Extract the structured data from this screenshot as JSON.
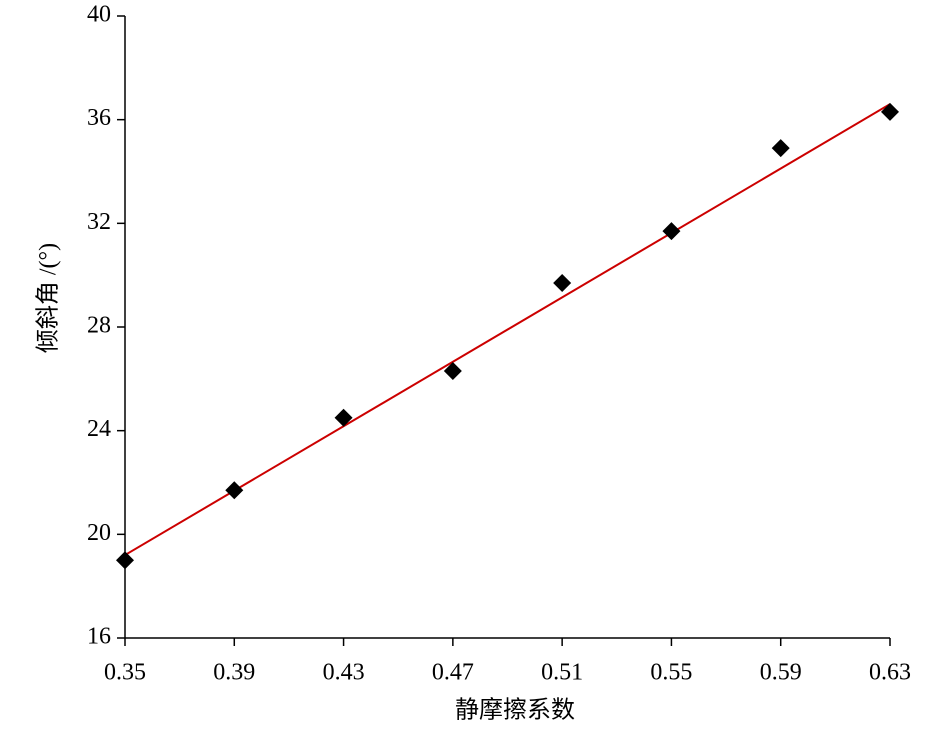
{
  "chart_data": {
    "type": "scatter",
    "x_label": "静摩擦系数",
    "y_label": "倾斜角 /(°)",
    "x": [
      0.35,
      0.39,
      0.43,
      0.47,
      0.51,
      0.55,
      0.59,
      0.63
    ],
    "series": [
      {
        "color": "#000000",
        "marker": "diamond",
        "values": [
          19.0,
          21.7,
          24.5,
          26.3,
          29.7,
          31.7,
          34.9,
          36.3
        ]
      }
    ],
    "trendline": {
      "x": [
        0.35,
        0.63
      ],
      "values": [
        19.2,
        36.6
      ],
      "color": "#cc0000"
    },
    "xlim": [
      0.35,
      0.63
    ],
    "xticks": [
      0.35,
      0.39,
      0.43,
      0.47,
      0.51,
      0.55,
      0.59,
      0.63
    ],
    "ylim": [
      16,
      40
    ],
    "yticks": [
      16,
      20,
      24,
      28,
      32,
      36,
      40
    ],
    "grid": false
  }
}
